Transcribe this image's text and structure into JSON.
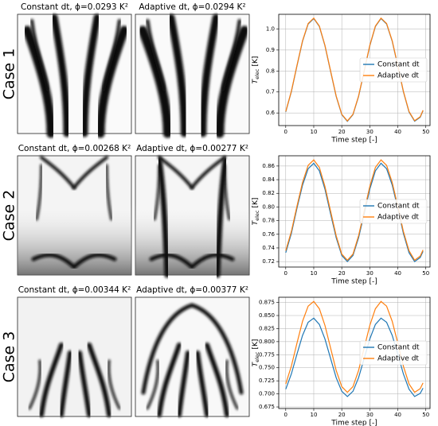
{
  "panels": [
    {
      "case_label": "Case 1",
      "images": [
        {
          "title": "Constant dt, ϕ=0.0293 K²"
        },
        {
          "title": "Adaptive dt, ϕ=0.0294 K²"
        }
      ]
    },
    {
      "case_label": "Case 2",
      "images": [
        {
          "title": "Constant dt, ϕ=0.00268 K²"
        },
        {
          "title": "Adaptive dt, ϕ=0.00277 K²"
        }
      ]
    },
    {
      "case_label": "Case 3",
      "images": [
        {
          "title": "Constant dt, ϕ=0.00344 K²"
        },
        {
          "title": "Adaptive dt, ϕ=0.00377 K²"
        }
      ]
    }
  ],
  "chart_data": [
    {
      "type": "line",
      "xlabel": "Time step [-]",
      "ylabel": {
        "symbol": "T",
        "subscript": "elec",
        "unit": "[K]"
      },
      "x": [
        0,
        2,
        4,
        6,
        8,
        10,
        12,
        14,
        16,
        18,
        20,
        22,
        24,
        26,
        28,
        30,
        32,
        34,
        36,
        38,
        40,
        42,
        44,
        46,
        48,
        49
      ],
      "xlim": [
        -2.5,
        51.5
      ],
      "xticks": [
        0,
        10,
        20,
        30,
        40,
        50
      ],
      "ylim": [
        0.54,
        1.07
      ],
      "yticks": [
        0.6,
        0.7,
        0.8,
        0.9,
        {
          "value": 1.0,
          "label": "1.0"
        }
      ],
      "grid": true,
      "legend": "center right",
      "series": [
        {
          "name": "Constant dt",
          "color": "#1f77b4",
          "values": [
            0.605,
            0.701,
            0.824,
            0.942,
            1.024,
            1.05,
            1.012,
            0.92,
            0.799,
            0.679,
            0.592,
            0.56,
            0.592,
            0.679,
            0.799,
            0.92,
            1.012,
            1.05,
            1.024,
            0.942,
            0.824,
            0.701,
            0.605,
            0.561,
            0.58,
            0.611
          ]
        },
        {
          "name": "Adaptive dt",
          "color": "#ff7f0e",
          "values": [
            0.607,
            0.703,
            0.826,
            0.944,
            1.026,
            1.052,
            1.014,
            0.922,
            0.801,
            0.681,
            0.594,
            0.562,
            0.594,
            0.681,
            0.801,
            0.922,
            1.014,
            1.052,
            1.026,
            0.944,
            0.826,
            0.703,
            0.607,
            0.563,
            0.582,
            0.613
          ]
        }
      ]
    },
    {
      "type": "line",
      "xlabel": "Time step [-]",
      "ylabel": {
        "symbol": "T",
        "subscript": "elec",
        "unit": "[K]"
      },
      "x": [
        0,
        2,
        4,
        6,
        8,
        10,
        12,
        14,
        16,
        18,
        20,
        22,
        24,
        26,
        28,
        30,
        32,
        34,
        36,
        38,
        40,
        42,
        44,
        46,
        48,
        49
      ],
      "xlim": [
        -2.5,
        51.5
      ],
      "xticks": [
        0,
        10,
        20,
        30,
        40,
        50
      ],
      "ylim": [
        0.712,
        0.875
      ],
      "yticks": [
        0.72,
        0.74,
        0.76,
        0.78,
        {
          "value": 0.8,
          "label": "0.80"
        },
        0.82,
        0.84,
        0.86
      ],
      "grid": true,
      "legend": "center right",
      "series": [
        {
          "name": "Constant dt",
          "color": "#1f77b4",
          "values": [
            0.733,
            0.761,
            0.798,
            0.832,
            0.856,
            0.864,
            0.853,
            0.826,
            0.79,
            0.755,
            0.729,
            0.72,
            0.729,
            0.755,
            0.79,
            0.826,
            0.853,
            0.864,
            0.856,
            0.832,
            0.798,
            0.761,
            0.733,
            0.72,
            0.726,
            0.735
          ]
        },
        {
          "name": "Adaptive dt",
          "color": "#ff7f0e",
          "values": [
            0.736,
            0.764,
            0.801,
            0.836,
            0.861,
            0.869,
            0.858,
            0.83,
            0.794,
            0.758,
            0.731,
            0.722,
            0.731,
            0.758,
            0.794,
            0.83,
            0.858,
            0.869,
            0.861,
            0.836,
            0.801,
            0.764,
            0.736,
            0.722,
            0.728,
            0.737
          ]
        }
      ]
    },
    {
      "type": "line",
      "xlabel": "Time step [-]",
      "ylabel": {
        "symbol": "T",
        "subscript": "elec",
        "unit": "[K]"
      },
      "x": [
        0,
        2,
        4,
        6,
        8,
        10,
        12,
        14,
        16,
        18,
        20,
        22,
        24,
        26,
        28,
        30,
        32,
        34,
        36,
        38,
        40,
        42,
        44,
        46,
        48,
        49
      ],
      "xlim": [
        -2.5,
        51.5
      ],
      "xticks": [
        0,
        10,
        20,
        30,
        40,
        50
      ],
      "ylim": [
        0.672,
        0.885
      ],
      "yticks": [
        0.675,
        {
          "value": 0.7,
          "label": "0.700"
        },
        0.725,
        {
          "value": 0.75,
          "label": "0.750"
        },
        0.775,
        {
          "value": 0.8,
          "label": "0.800"
        },
        0.825,
        {
          "value": 0.85,
          "label": "0.850"
        },
        0.875
      ],
      "grid": true,
      "legend": "center right",
      "series": [
        {
          "name": "Constant dt",
          "color": "#1f77b4",
          "values": [
            0.709,
            0.738,
            0.776,
            0.812,
            0.837,
            0.845,
            0.833,
            0.805,
            0.768,
            0.731,
            0.705,
            0.695,
            0.705,
            0.731,
            0.768,
            0.805,
            0.833,
            0.845,
            0.837,
            0.812,
            0.776,
            0.738,
            0.709,
            0.695,
            0.701,
            0.711
          ]
        },
        {
          "name": "Adaptive dt",
          "color": "#ff7f0e",
          "values": [
            0.719,
            0.753,
            0.797,
            0.839,
            0.868,
            0.877,
            0.863,
            0.831,
            0.788,
            0.745,
            0.714,
            0.703,
            0.714,
            0.745,
            0.788,
            0.831,
            0.863,
            0.877,
            0.868,
            0.839,
            0.797,
            0.753,
            0.719,
            0.703,
            0.71,
            0.721
          ]
        }
      ]
    }
  ]
}
